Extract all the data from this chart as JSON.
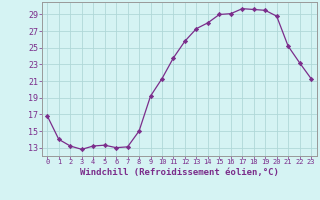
{
  "hours": [
    0,
    1,
    2,
    3,
    4,
    5,
    6,
    7,
    8,
    9,
    10,
    11,
    12,
    13,
    14,
    15,
    16,
    17,
    18,
    19,
    20,
    21,
    22,
    23
  ],
  "values": [
    16.8,
    14.0,
    13.2,
    12.8,
    13.2,
    13.3,
    13.0,
    13.1,
    15.0,
    19.2,
    21.3,
    23.8,
    25.8,
    27.3,
    28.0,
    29.0,
    29.1,
    29.7,
    29.6,
    29.5,
    28.8,
    25.2,
    23.2,
    21.3
  ],
  "line_color": "#7b2d8b",
  "marker": "D",
  "marker_size": 2.2,
  "bg_color": "#d5f3f3",
  "grid_color": "#b0d8d8",
  "xlabel": "Windchill (Refroidissement éolien,°C)",
  "xlabel_fontsize": 6.5,
  "ytick_labels": [
    "13",
    "15",
    "17",
    "19",
    "21",
    "23",
    "25",
    "27",
    "29"
  ],
  "ytick_values": [
    13,
    15,
    17,
    19,
    21,
    23,
    25,
    27,
    29
  ],
  "xtick_values": [
    0,
    1,
    2,
    3,
    4,
    5,
    6,
    7,
    8,
    9,
    10,
    11,
    12,
    13,
    14,
    15,
    16,
    17,
    18,
    19,
    20,
    21,
    22,
    23
  ],
  "ylim": [
    12.0,
    30.5
  ],
  "xlim": [
    -0.5,
    23.5
  ]
}
